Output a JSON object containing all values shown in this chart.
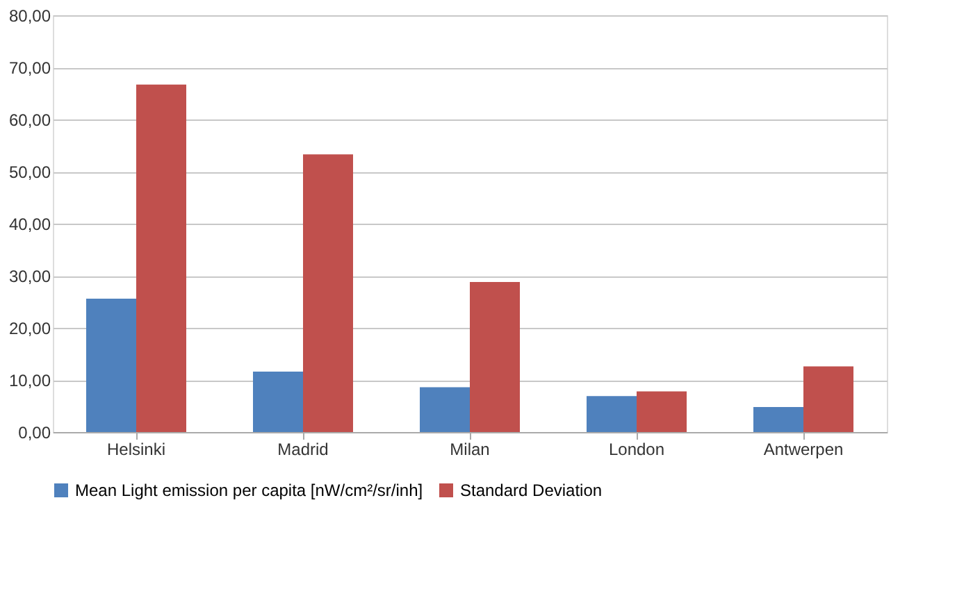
{
  "chart_data": {
    "type": "bar",
    "categories": [
      "Helsinki",
      "Madrid",
      "Milan",
      "London",
      "Antwerpen"
    ],
    "series": [
      {
        "name": "Mean Light emission per capita [nW/cm²/sr/inh]",
        "color": "#4f81bd",
        "values": [
          25.6,
          11.6,
          8.6,
          6.9,
          4.8
        ]
      },
      {
        "name": "Standard Deviation",
        "color": "#c0504d",
        "values": [
          66.7,
          53.3,
          28.8,
          7.8,
          12.6
        ]
      }
    ],
    "ylim": [
      0,
      80
    ],
    "yticks": [
      {
        "value": 0,
        "label": "0,00"
      },
      {
        "value": 10,
        "label": "10,00"
      },
      {
        "value": 20,
        "label": "20,00"
      },
      {
        "value": 30,
        "label": "30,00"
      },
      {
        "value": 40,
        "label": "40,00"
      },
      {
        "value": 50,
        "label": "50,00"
      },
      {
        "value": 60,
        "label": "60,00"
      },
      {
        "value": 70,
        "label": "70,00"
      },
      {
        "value": 80,
        "label": "80,00"
      }
    ],
    "grid": "y",
    "legend": "bottom"
  }
}
